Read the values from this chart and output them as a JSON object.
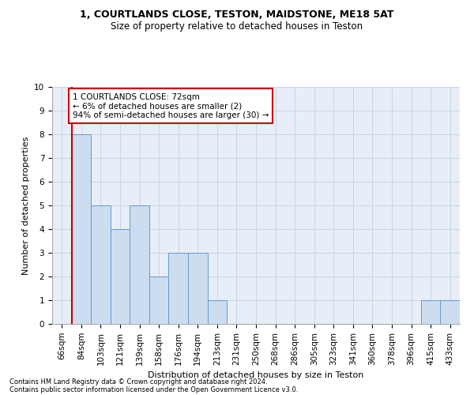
{
  "title1": "1, COURTLANDS CLOSE, TESTON, MAIDSTONE, ME18 5AT",
  "title2": "Size of property relative to detached houses in Teston",
  "xlabel": "Distribution of detached houses by size in Teston",
  "ylabel": "Number of detached properties",
  "categories": [
    "66sqm",
    "84sqm",
    "103sqm",
    "121sqm",
    "139sqm",
    "158sqm",
    "176sqm",
    "194sqm",
    "213sqm",
    "231sqm",
    "250sqm",
    "268sqm",
    "286sqm",
    "305sqm",
    "323sqm",
    "341sqm",
    "360sqm",
    "378sqm",
    "396sqm",
    "415sqm",
    "433sqm"
  ],
  "values": [
    0,
    8,
    5,
    4,
    5,
    2,
    3,
    3,
    1,
    0,
    0,
    0,
    0,
    0,
    0,
    0,
    0,
    0,
    0,
    1,
    1
  ],
  "bar_color": "#ccddf0",
  "bar_edge_color": "#6699cc",
  "annotation_text": "1 COURTLANDS CLOSE: 72sqm\n← 6% of detached houses are smaller (2)\n94% of semi-detached houses are larger (30) →",
  "annotation_box_color": "#ffffff",
  "annotation_box_edge": "#cc0000",
  "red_line_x": 0.5,
  "ylim": [
    0,
    10
  ],
  "yticks": [
    0,
    1,
    2,
    3,
    4,
    5,
    6,
    7,
    8,
    9,
    10
  ],
  "footer1": "Contains HM Land Registry data © Crown copyright and database right 2024.",
  "footer2": "Contains public sector information licensed under the Open Government Licence v3.0.",
  "grid_color": "#c8d4e8",
  "background_color": "#e8eef8",
  "title1_fontsize": 9,
  "title2_fontsize": 8.5,
  "ylabel_fontsize": 8,
  "xlabel_fontsize": 8,
  "tick_fontsize": 7.5,
  "footer_fontsize": 6,
  "ann_fontsize": 7.5
}
